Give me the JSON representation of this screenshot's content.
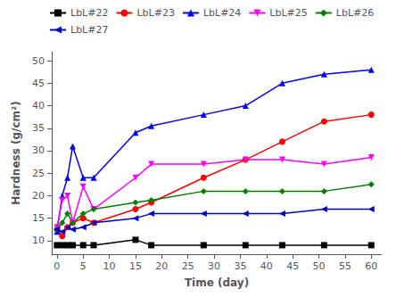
{
  "chart_data": {
    "type": "line",
    "xlabel": "Time (day)",
    "ylabel": "Hardness (g/cm²)",
    "xlim": [
      -1,
      62
    ],
    "ylim": [
      7,
      52
    ],
    "xticks": [
      0,
      5,
      10,
      15,
      20,
      25,
      30,
      35,
      40,
      45,
      50,
      55,
      60
    ],
    "yticks": [
      10,
      15,
      20,
      25,
      30,
      35,
      40,
      45,
      50
    ],
    "grid": false,
    "legend": "upper left",
    "x": [
      0,
      1,
      2,
      3,
      5,
      7,
      15,
      18,
      28,
      36,
      43,
      51,
      60
    ],
    "series": [
      {
        "name": "LbL#22",
        "color": "#000000",
        "marker": "square",
        "values": [
          9.0,
          9.0,
          9.0,
          9.0,
          9.0,
          9.0,
          10.2,
          9.0,
          9.0,
          9.0,
          9.0,
          9.0,
          9.0
        ]
      },
      {
        "name": "LbL#23",
        "color": "#ff0000",
        "marker": "circle",
        "values": [
          12.5,
          11.0,
          13.0,
          14.0,
          15.0,
          14.0,
          17.0,
          18.5,
          24.0,
          28.0,
          32.0,
          36.5,
          38.0
        ]
      },
      {
        "name": "LbL#24",
        "color": "#0000ff",
        "marker": "triangle-up",
        "values": [
          12.0,
          20.0,
          24.0,
          31.0,
          24.0,
          24.0,
          34.0,
          35.5,
          38.0,
          40.0,
          45.0,
          47.0,
          48.0
        ]
      },
      {
        "name": "LbL#25",
        "color": "#ff00ff",
        "marker": "triangle-down",
        "values": [
          13.0,
          19.0,
          20.0,
          14.0,
          22.0,
          17.0,
          24.0,
          27.0,
          27.0,
          28.0,
          28.0,
          27.0,
          28.5
        ]
      },
      {
        "name": "LbL#26",
        "color": "#008000",
        "marker": "diamond",
        "values": [
          12.5,
          14.0,
          16.0,
          14.0,
          16.0,
          17.0,
          18.5,
          19.0,
          21.0,
          21.0,
          21.0,
          21.0,
          22.5
        ]
      },
      {
        "name": "LbL#27",
        "color": "#0000cd",
        "marker": "caret-left",
        "values": [
          12.5,
          12.0,
          13.0,
          12.5,
          13.0,
          14.0,
          15.0,
          16.0,
          16.0,
          16.0,
          16.0,
          17.0,
          17.0
        ]
      }
    ]
  }
}
